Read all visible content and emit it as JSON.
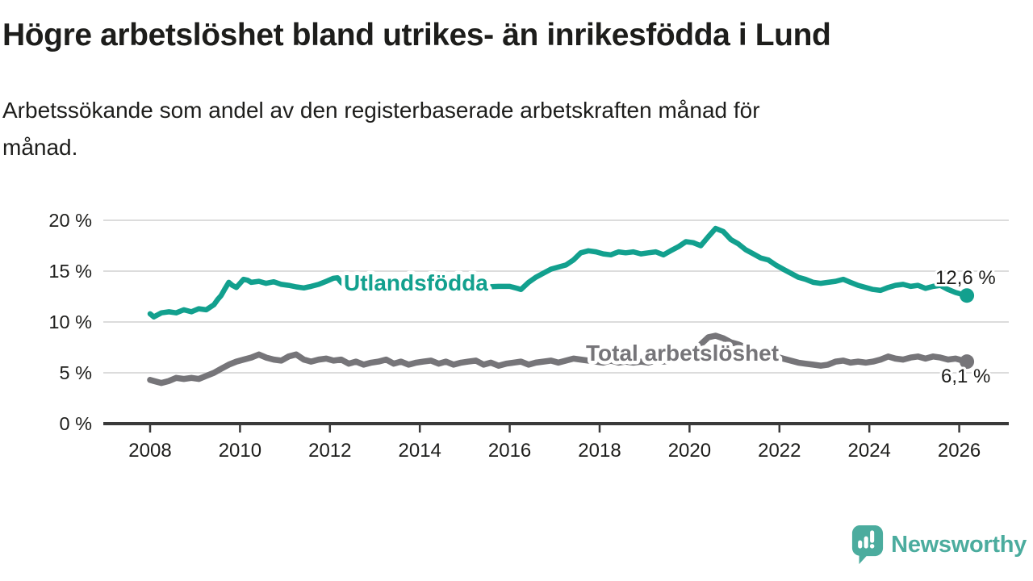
{
  "chart_data": {
    "type": "line",
    "title": "Högre arbetslöshet bland utrikes- än inrikesfödda i Lund",
    "subtitle": "Arbetssökande som andel av den registerbaserade arbetskraften månad för månad.",
    "unit": "%",
    "xlabel": "",
    "ylabel": "",
    "xlim": [
      2007,
      2027.1
    ],
    "ylim": [
      0,
      20
    ],
    "x_ticks": [
      2008,
      2010,
      2012,
      2014,
      2016,
      2018,
      2020,
      2022,
      2024,
      2026
    ],
    "y_ticks": [
      0,
      5,
      10,
      15,
      20
    ],
    "grid": true,
    "legend_position": "inline",
    "grid_color": "#DCDCDC",
    "axis_color": "#3A3A3A",
    "text_color": "#1D1D1B",
    "series": [
      {
        "name": "Utlandsfödda",
        "color": "#12A08E",
        "end_label": "12,6 %",
        "end_value": 12.6,
        "points": [
          [
            2008.0,
            10.8
          ],
          [
            2008.08,
            10.5
          ],
          [
            2008.25,
            10.9
          ],
          [
            2008.42,
            11.0
          ],
          [
            2008.58,
            10.9
          ],
          [
            2008.75,
            11.2
          ],
          [
            2008.92,
            11.0
          ],
          [
            2009.08,
            11.3
          ],
          [
            2009.25,
            11.2
          ],
          [
            2009.42,
            11.7
          ],
          [
            2009.5,
            12.2
          ],
          [
            2009.58,
            12.6
          ],
          [
            2009.67,
            13.3
          ],
          [
            2009.75,
            13.9
          ],
          [
            2009.83,
            13.6
          ],
          [
            2009.92,
            13.4
          ],
          [
            2010.0,
            13.8
          ],
          [
            2010.08,
            14.2
          ],
          [
            2010.17,
            14.1
          ],
          [
            2010.25,
            13.9
          ],
          [
            2010.42,
            14.0
          ],
          [
            2010.58,
            13.8
          ],
          [
            2010.75,
            13.95
          ],
          [
            2010.92,
            13.7
          ],
          [
            2011.08,
            13.6
          ],
          [
            2011.25,
            13.45
          ],
          [
            2011.42,
            13.35
          ],
          [
            2011.58,
            13.5
          ],
          [
            2011.75,
            13.7
          ],
          [
            2011.92,
            14.0
          ],
          [
            2012.08,
            14.3
          ],
          [
            2012.17,
            14.35
          ],
          [
            2012.25,
            13.9
          ],
          [
            2012.33,
            13.6
          ],
          [
            2012.5,
            13.5
          ],
          [
            2012.75,
            13.6
          ],
          [
            2013.0,
            13.5
          ],
          [
            2013.25,
            13.6
          ],
          [
            2013.5,
            13.5
          ],
          [
            2013.75,
            13.45
          ],
          [
            2014.0,
            13.5
          ],
          [
            2014.25,
            13.55
          ],
          [
            2014.5,
            13.45
          ],
          [
            2014.75,
            13.5
          ],
          [
            2015.0,
            13.4
          ],
          [
            2015.25,
            13.5
          ],
          [
            2015.5,
            13.45
          ],
          [
            2015.75,
            13.5
          ],
          [
            2016.0,
            13.5
          ],
          [
            2016.17,
            13.3
          ],
          [
            2016.25,
            13.2
          ],
          [
            2016.42,
            13.9
          ],
          [
            2016.58,
            14.4
          ],
          [
            2016.75,
            14.8
          ],
          [
            2016.92,
            15.2
          ],
          [
            2017.08,
            15.4
          ],
          [
            2017.25,
            15.6
          ],
          [
            2017.42,
            16.1
          ],
          [
            2017.58,
            16.8
          ],
          [
            2017.75,
            17.0
          ],
          [
            2017.92,
            16.9
          ],
          [
            2018.08,
            16.7
          ],
          [
            2018.25,
            16.6
          ],
          [
            2018.42,
            16.9
          ],
          [
            2018.58,
            16.8
          ],
          [
            2018.75,
            16.9
          ],
          [
            2018.92,
            16.7
          ],
          [
            2019.08,
            16.8
          ],
          [
            2019.25,
            16.9
          ],
          [
            2019.42,
            16.6
          ],
          [
            2019.58,
            17.0
          ],
          [
            2019.75,
            17.4
          ],
          [
            2019.92,
            17.9
          ],
          [
            2020.08,
            17.8
          ],
          [
            2020.25,
            17.5
          ],
          [
            2020.42,
            18.4
          ],
          [
            2020.58,
            19.2
          ],
          [
            2020.75,
            18.9
          ],
          [
            2020.92,
            18.1
          ],
          [
            2021.08,
            17.7
          ],
          [
            2021.25,
            17.1
          ],
          [
            2021.42,
            16.7
          ],
          [
            2021.58,
            16.3
          ],
          [
            2021.75,
            16.1
          ],
          [
            2021.92,
            15.6
          ],
          [
            2022.08,
            15.2
          ],
          [
            2022.25,
            14.8
          ],
          [
            2022.42,
            14.4
          ],
          [
            2022.58,
            14.2
          ],
          [
            2022.75,
            13.9
          ],
          [
            2022.92,
            13.8
          ],
          [
            2023.08,
            13.9
          ],
          [
            2023.25,
            14.0
          ],
          [
            2023.42,
            14.2
          ],
          [
            2023.58,
            13.9
          ],
          [
            2023.75,
            13.6
          ],
          [
            2023.92,
            13.4
          ],
          [
            2024.08,
            13.2
          ],
          [
            2024.25,
            13.1
          ],
          [
            2024.42,
            13.4
          ],
          [
            2024.58,
            13.6
          ],
          [
            2024.75,
            13.7
          ],
          [
            2024.92,
            13.5
          ],
          [
            2025.08,
            13.6
          ],
          [
            2025.25,
            13.3
          ],
          [
            2025.42,
            13.5
          ],
          [
            2025.58,
            13.6
          ],
          [
            2025.75,
            13.2
          ],
          [
            2025.92,
            12.9
          ],
          [
            2026.08,
            12.7
          ],
          [
            2026.17,
            12.6
          ]
        ]
      },
      {
        "name": "Total arbetslöshet",
        "color": "#767579",
        "end_label": "6,1 %",
        "end_value": 6.1,
        "points": [
          [
            2008.0,
            4.3
          ],
          [
            2008.08,
            4.2
          ],
          [
            2008.25,
            4.0
          ],
          [
            2008.42,
            4.2
          ],
          [
            2008.58,
            4.5
          ],
          [
            2008.75,
            4.4
          ],
          [
            2008.92,
            4.5
          ],
          [
            2009.08,
            4.4
          ],
          [
            2009.25,
            4.7
          ],
          [
            2009.42,
            5.0
          ],
          [
            2009.58,
            5.4
          ],
          [
            2009.75,
            5.8
          ],
          [
            2009.92,
            6.1
          ],
          [
            2010.08,
            6.3
          ],
          [
            2010.25,
            6.5
          ],
          [
            2010.42,
            6.8
          ],
          [
            2010.58,
            6.5
          ],
          [
            2010.75,
            6.3
          ],
          [
            2010.92,
            6.2
          ],
          [
            2011.08,
            6.6
          ],
          [
            2011.25,
            6.8
          ],
          [
            2011.42,
            6.3
          ],
          [
            2011.58,
            6.1
          ],
          [
            2011.75,
            6.3
          ],
          [
            2011.92,
            6.4
          ],
          [
            2012.08,
            6.2
          ],
          [
            2012.25,
            6.3
          ],
          [
            2012.42,
            5.9
          ],
          [
            2012.58,
            6.1
          ],
          [
            2012.75,
            5.8
          ],
          [
            2012.92,
            6.0
          ],
          [
            2013.08,
            6.1
          ],
          [
            2013.25,
            6.3
          ],
          [
            2013.42,
            5.9
          ],
          [
            2013.58,
            6.1
          ],
          [
            2013.75,
            5.8
          ],
          [
            2013.92,
            6.0
          ],
          [
            2014.08,
            6.1
          ],
          [
            2014.25,
            6.2
          ],
          [
            2014.42,
            5.9
          ],
          [
            2014.58,
            6.1
          ],
          [
            2014.75,
            5.8
          ],
          [
            2014.92,
            6.0
          ],
          [
            2015.08,
            6.1
          ],
          [
            2015.25,
            6.2
          ],
          [
            2015.42,
            5.8
          ],
          [
            2015.58,
            6.0
          ],
          [
            2015.75,
            5.7
          ],
          [
            2015.92,
            5.9
          ],
          [
            2016.08,
            6.0
          ],
          [
            2016.25,
            6.1
          ],
          [
            2016.42,
            5.8
          ],
          [
            2016.58,
            6.0
          ],
          [
            2016.75,
            6.1
          ],
          [
            2016.92,
            6.2
          ],
          [
            2017.08,
            6.0
          ],
          [
            2017.25,
            6.2
          ],
          [
            2017.42,
            6.4
          ],
          [
            2017.58,
            6.3
          ],
          [
            2017.75,
            6.2
          ],
          [
            2017.92,
            6.1
          ],
          [
            2018.08,
            6.0
          ],
          [
            2018.25,
            6.2
          ],
          [
            2018.42,
            6.0
          ],
          [
            2018.58,
            6.1
          ],
          [
            2018.75,
            6.0
          ],
          [
            2018.92,
            6.1
          ],
          [
            2019.08,
            6.0
          ],
          [
            2019.25,
            6.2
          ],
          [
            2019.42,
            6.1
          ],
          [
            2019.58,
            6.2
          ],
          [
            2019.75,
            6.3
          ],
          [
            2019.92,
            6.5
          ],
          [
            2020.08,
            6.9
          ],
          [
            2020.25,
            7.8
          ],
          [
            2020.42,
            8.5
          ],
          [
            2020.58,
            8.65
          ],
          [
            2020.75,
            8.4
          ],
          [
            2020.92,
            8.0
          ],
          [
            2021.08,
            7.8
          ],
          [
            2021.25,
            7.5
          ],
          [
            2021.42,
            7.2
          ],
          [
            2021.58,
            7.0
          ],
          [
            2021.75,
            6.8
          ],
          [
            2021.92,
            6.6
          ],
          [
            2022.08,
            6.4
          ],
          [
            2022.25,
            6.2
          ],
          [
            2022.42,
            6.0
          ],
          [
            2022.58,
            5.9
          ],
          [
            2022.75,
            5.8
          ],
          [
            2022.92,
            5.7
          ],
          [
            2023.08,
            5.8
          ],
          [
            2023.25,
            6.1
          ],
          [
            2023.42,
            6.2
          ],
          [
            2023.58,
            6.0
          ],
          [
            2023.75,
            6.1
          ],
          [
            2023.92,
            6.0
          ],
          [
            2024.08,
            6.1
          ],
          [
            2024.25,
            6.3
          ],
          [
            2024.42,
            6.6
          ],
          [
            2024.58,
            6.4
          ],
          [
            2024.75,
            6.3
          ],
          [
            2024.92,
            6.5
          ],
          [
            2025.08,
            6.6
          ],
          [
            2025.25,
            6.4
          ],
          [
            2025.42,
            6.6
          ],
          [
            2025.58,
            6.5
          ],
          [
            2025.75,
            6.3
          ],
          [
            2025.92,
            6.4
          ],
          [
            2026.08,
            6.2
          ],
          [
            2026.17,
            6.1
          ]
        ]
      }
    ]
  },
  "branding": {
    "logo_text": "Newsworthy",
    "logo_color": "#4BAC9E"
  }
}
